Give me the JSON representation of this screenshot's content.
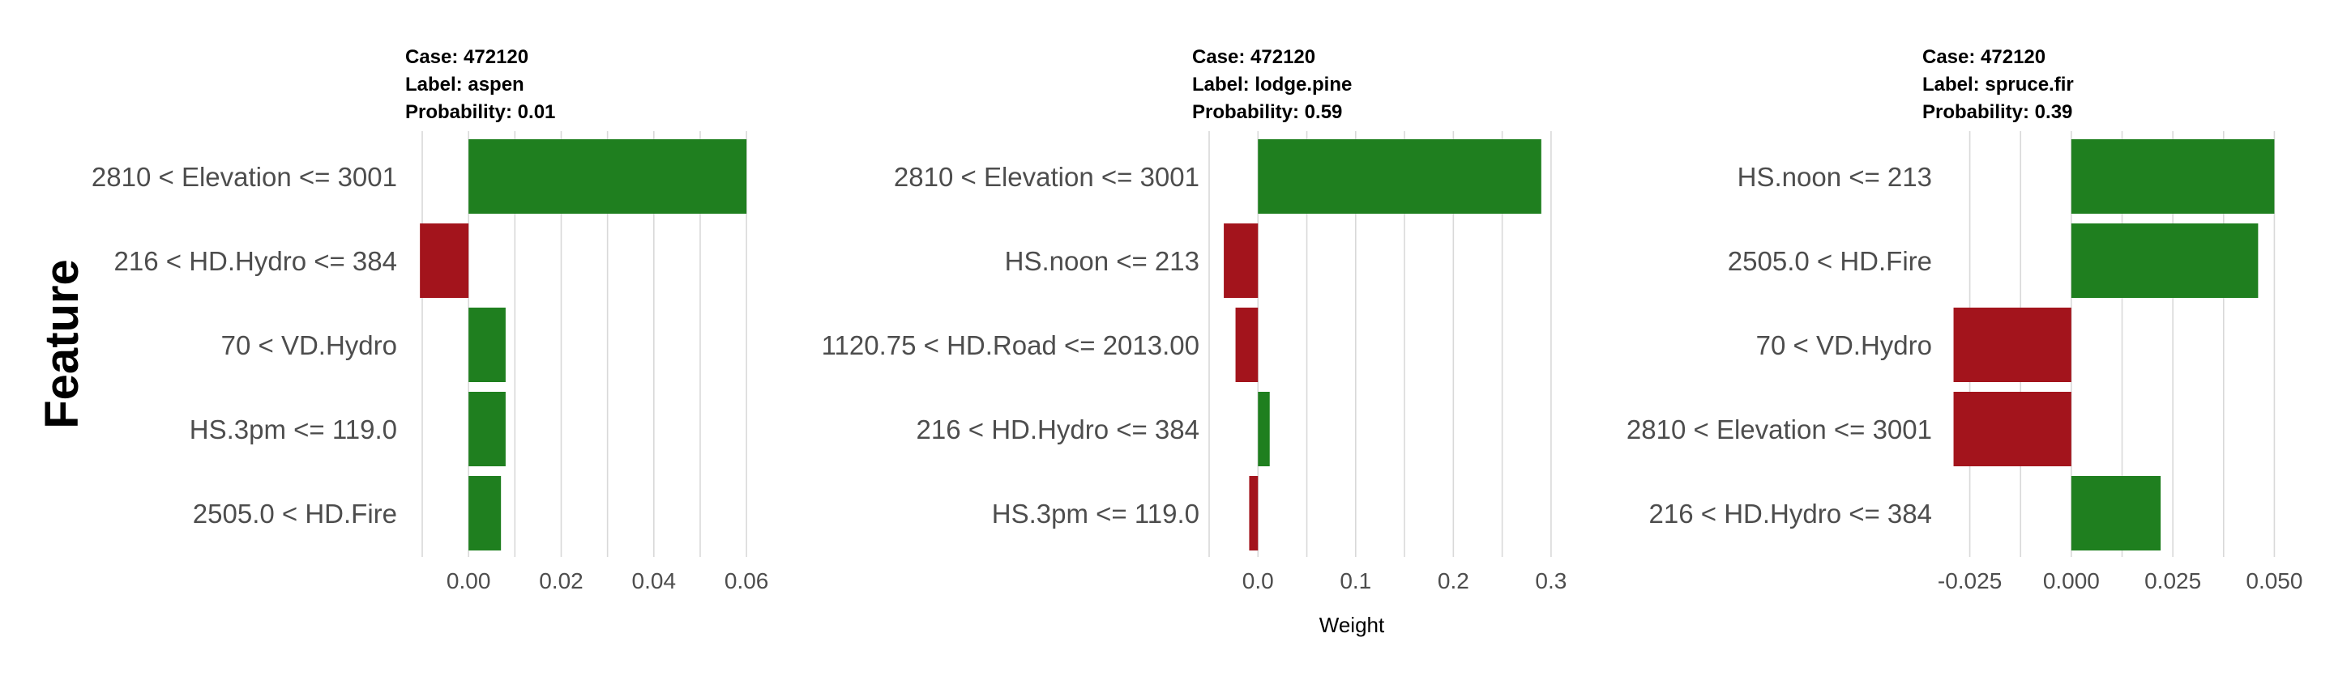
{
  "chart_data": {
    "type": "bar",
    "ylabel": "Feature",
    "xlabel": "Weight",
    "colors": {
      "supports": "#1f7f1f",
      "contradicts": "#a3141c",
      "grid": "#d9d9d9"
    },
    "panels": [
      {
        "case_label": "Case: 472120",
        "label_label": "Label: aspen",
        "probability_label": "Probability: 0.01",
        "xlim": [
          -0.01,
          0.064
        ],
        "ticks": [
          0.0,
          0.02,
          0.04,
          0.06
        ],
        "tick_labels": [
          "0.00",
          "0.02",
          "0.04",
          "0.06"
        ],
        "features": [
          "2810 < Elevation <= 3001",
          "216 < HD.Hydro <= 384",
          "70 < VD.Hydro",
          "HS.3pm <= 119.0",
          "2505.0 < HD.Fire"
        ],
        "values": [
          0.06,
          -0.0105,
          0.008,
          0.008,
          0.007
        ]
      },
      {
        "case_label": "Case: 472120",
        "label_label": "Label: lodge.pine",
        "probability_label": "Probability: 0.59",
        "xlim": [
          -0.05,
          0.32
        ],
        "ticks": [
          0.0,
          0.1,
          0.2,
          0.3
        ],
        "tick_labels": [
          "0.0",
          "0.1",
          "0.2",
          "0.3"
        ],
        "features": [
          "2810 < Elevation <= 3001",
          "HS.noon <= 213",
          "1120.75 < HD.Road <= 2013.00",
          "216 < HD.Hydro <= 384",
          "HS.3pm <= 119.0"
        ],
        "values": [
          0.29,
          -0.035,
          -0.023,
          0.012,
          -0.009
        ]
      },
      {
        "case_label": "Case: 472120",
        "label_label": "Label: spruce.fir",
        "probability_label": "Probability: 0.39",
        "xlim": [
          -0.0325,
          0.0575
        ],
        "ticks": [
          -0.025,
          0.0,
          0.025,
          0.05
        ],
        "tick_labels": [
          "-0.025",
          "0.000",
          "0.025",
          "0.050"
        ],
        "features": [
          "HS.noon <= 213",
          "2505.0 < HD.Fire",
          "70 < VD.Hydro",
          "2810 < Elevation <= 3001",
          "216 < HD.Hydro <= 384"
        ],
        "values": [
          0.05,
          0.046,
          -0.029,
          -0.029,
          0.022
        ]
      }
    ]
  }
}
